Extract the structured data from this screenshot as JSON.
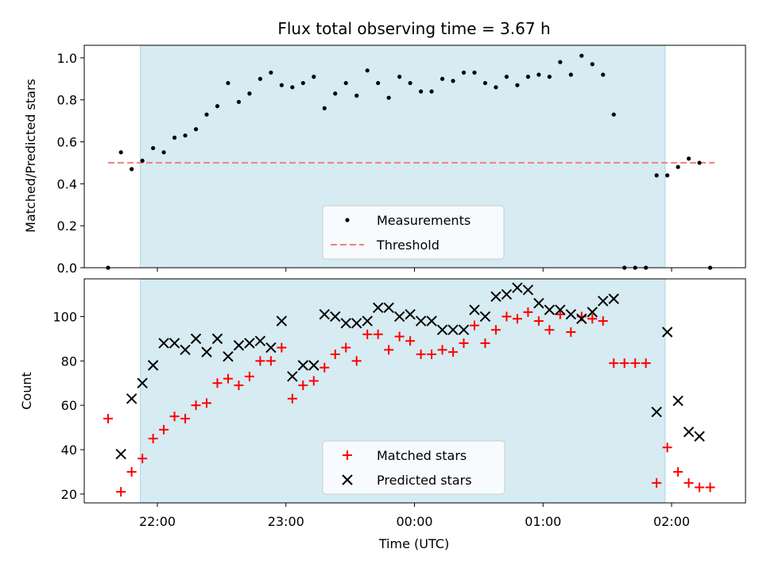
{
  "title": "Flux total observing time = 3.67 h",
  "colors": {
    "shade": "#add8e6",
    "measurements": "#000000",
    "threshold": "#f08080",
    "matched": "#ff0000",
    "predicted": "#000000"
  },
  "chart_data": [
    {
      "type": "scatter",
      "ylabel": "Matched/Predicted stars",
      "xlabel": "",
      "ylim": [
        0,
        1.06
      ],
      "yticks": [
        "0.0",
        "0.2",
        "0.4",
        "0.6",
        "0.8",
        "1.0"
      ],
      "legend": "lower-center",
      "observing_window": [
        "21:52",
        "01:57"
      ],
      "threshold": {
        "name": "Threshold",
        "value": 0.5,
        "x_range": [
          "21:37",
          "02:20"
        ]
      },
      "series": [
        {
          "name": "Measurements",
          "marker": "dot",
          "points": [
            [
              "21:37",
              0.0
            ],
            [
              "21:43",
              0.55
            ],
            [
              "21:48",
              0.47
            ],
            [
              "21:53",
              0.51
            ],
            [
              "21:58",
              0.57
            ],
            [
              "22:03",
              0.55
            ],
            [
              "22:08",
              0.62
            ],
            [
              "22:13",
              0.63
            ],
            [
              "22:18",
              0.66
            ],
            [
              "22:23",
              0.73
            ],
            [
              "22:28",
              0.77
            ],
            [
              "22:33",
              0.88
            ],
            [
              "22:38",
              0.79
            ],
            [
              "22:43",
              0.83
            ],
            [
              "22:48",
              0.9
            ],
            [
              "22:53",
              0.93
            ],
            [
              "22:58",
              0.87
            ],
            [
              "23:03",
              0.86
            ],
            [
              "23:08",
              0.88
            ],
            [
              "23:13",
              0.91
            ],
            [
              "23:18",
              0.76
            ],
            [
              "23:23",
              0.83
            ],
            [
              "23:28",
              0.88
            ],
            [
              "23:33",
              0.82
            ],
            [
              "23:38",
              0.94
            ],
            [
              "23:43",
              0.88
            ],
            [
              "23:48",
              0.81
            ],
            [
              "23:53",
              0.91
            ],
            [
              "23:58",
              0.88
            ],
            [
              "00:03",
              0.84
            ],
            [
              "00:08",
              0.84
            ],
            [
              "00:13",
              0.9
            ],
            [
              "00:18",
              0.89
            ],
            [
              "00:23",
              0.93
            ],
            [
              "00:28",
              0.93
            ],
            [
              "00:33",
              0.88
            ],
            [
              "00:38",
              0.86
            ],
            [
              "00:43",
              0.91
            ],
            [
              "00:48",
              0.87
            ],
            [
              "00:53",
              0.91
            ],
            [
              "00:58",
              0.92
            ],
            [
              "01:03",
              0.91
            ],
            [
              "01:08",
              0.98
            ],
            [
              "01:13",
              0.92
            ],
            [
              "01:18",
              1.01
            ],
            [
              "01:23",
              0.97
            ],
            [
              "01:28",
              0.92
            ],
            [
              "01:33",
              0.73
            ],
            [
              "01:38",
              0.0
            ],
            [
              "01:43",
              0.0
            ],
            [
              "01:48",
              0.0
            ],
            [
              "01:53",
              0.44
            ],
            [
              "01:58",
              0.44
            ],
            [
              "02:03",
              0.48
            ],
            [
              "02:08",
              0.52
            ],
            [
              "02:13",
              0.5
            ],
            [
              "02:18",
              0.0
            ]
          ]
        }
      ]
    },
    {
      "type": "scatter",
      "ylabel": "Count",
      "xlabel": "Time (UTC)",
      "ylim": [
        16,
        117
      ],
      "yticks": [
        "20",
        "40",
        "60",
        "80",
        "100"
      ],
      "xticks": [
        "22:00",
        "23:00",
        "00:00",
        "01:00",
        "02:00"
      ],
      "legend": "lower-center",
      "observing_window": [
        "21:52",
        "01:57"
      ],
      "series": [
        {
          "name": "Matched stars",
          "marker": "plus",
          "points": [
            [
              "21:37",
              54
            ],
            [
              "21:43",
              21
            ],
            [
              "21:48",
              30
            ],
            [
              "21:53",
              36
            ],
            [
              "21:58",
              45
            ],
            [
              "22:03",
              49
            ],
            [
              "22:08",
              55
            ],
            [
              "22:13",
              54
            ],
            [
              "22:18",
              60
            ],
            [
              "22:23",
              61
            ],
            [
              "22:28",
              70
            ],
            [
              "22:33",
              72
            ],
            [
              "22:38",
              69
            ],
            [
              "22:43",
              73
            ],
            [
              "22:48",
              80
            ],
            [
              "22:53",
              80
            ],
            [
              "22:58",
              86
            ],
            [
              "23:03",
              63
            ],
            [
              "23:08",
              69
            ],
            [
              "23:13",
              71
            ],
            [
              "23:18",
              77
            ],
            [
              "23:23",
              83
            ],
            [
              "23:28",
              86
            ],
            [
              "23:33",
              80
            ],
            [
              "23:38",
              92
            ],
            [
              "23:43",
              92
            ],
            [
              "23:48",
              85
            ],
            [
              "23:53",
              91
            ],
            [
              "23:58",
              89
            ],
            [
              "00:03",
              83
            ],
            [
              "00:08",
              83
            ],
            [
              "00:13",
              85
            ],
            [
              "00:18",
              84
            ],
            [
              "00:23",
              88
            ],
            [
              "00:28",
              96
            ],
            [
              "00:33",
              88
            ],
            [
              "00:38",
              94
            ],
            [
              "00:43",
              100
            ],
            [
              "00:48",
              99
            ],
            [
              "00:53",
              102
            ],
            [
              "00:58",
              98
            ],
            [
              "01:03",
              94
            ],
            [
              "01:08",
              101
            ],
            [
              "01:13",
              93
            ],
            [
              "01:18",
              100
            ],
            [
              "01:23",
              99
            ],
            [
              "01:28",
              98
            ],
            [
              "01:33",
              79
            ],
            [
              "01:38",
              79
            ],
            [
              "01:43",
              79
            ],
            [
              "01:48",
              79
            ],
            [
              "01:53",
              25
            ],
            [
              "01:58",
              41
            ],
            [
              "02:03",
              30
            ],
            [
              "02:08",
              25
            ],
            [
              "02:13",
              23
            ],
            [
              "02:18",
              23
            ]
          ]
        },
        {
          "name": "Predicted stars",
          "marker": "x",
          "points": [
            [
              "21:43",
              38
            ],
            [
              "21:48",
              63
            ],
            [
              "21:53",
              70
            ],
            [
              "21:58",
              78
            ],
            [
              "22:03",
              88
            ],
            [
              "22:08",
              88
            ],
            [
              "22:13",
              85
            ],
            [
              "22:18",
              90
            ],
            [
              "22:23",
              84
            ],
            [
              "22:28",
              90
            ],
            [
              "22:33",
              82
            ],
            [
              "22:38",
              87
            ],
            [
              "22:43",
              88
            ],
            [
              "22:48",
              89
            ],
            [
              "22:53",
              86
            ],
            [
              "22:58",
              98
            ],
            [
              "23:03",
              73
            ],
            [
              "23:08",
              78
            ],
            [
              "23:13",
              78
            ],
            [
              "23:18",
              101
            ],
            [
              "23:23",
              100
            ],
            [
              "23:28",
              97
            ],
            [
              "23:33",
              97
            ],
            [
              "23:38",
              98
            ],
            [
              "23:43",
              104
            ],
            [
              "23:48",
              104
            ],
            [
              "23:53",
              100
            ],
            [
              "23:58",
              101
            ],
            [
              "00:03",
              98
            ],
            [
              "00:08",
              98
            ],
            [
              "00:13",
              94
            ],
            [
              "00:18",
              94
            ],
            [
              "00:23",
              94
            ],
            [
              "00:28",
              103
            ],
            [
              "00:33",
              100
            ],
            [
              "00:38",
              109
            ],
            [
              "00:43",
              110
            ],
            [
              "00:48",
              113
            ],
            [
              "00:53",
              112
            ],
            [
              "00:58",
              106
            ],
            [
              "01:03",
              103
            ],
            [
              "01:08",
              103
            ],
            [
              "01:13",
              101
            ],
            [
              "01:18",
              99
            ],
            [
              "01:23",
              102
            ],
            [
              "01:28",
              107
            ],
            [
              "01:33",
              108
            ],
            [
              "01:53",
              57
            ],
            [
              "01:58",
              93
            ],
            [
              "02:03",
              62
            ],
            [
              "02:08",
              48
            ],
            [
              "02:13",
              46
            ]
          ]
        }
      ]
    }
  ]
}
